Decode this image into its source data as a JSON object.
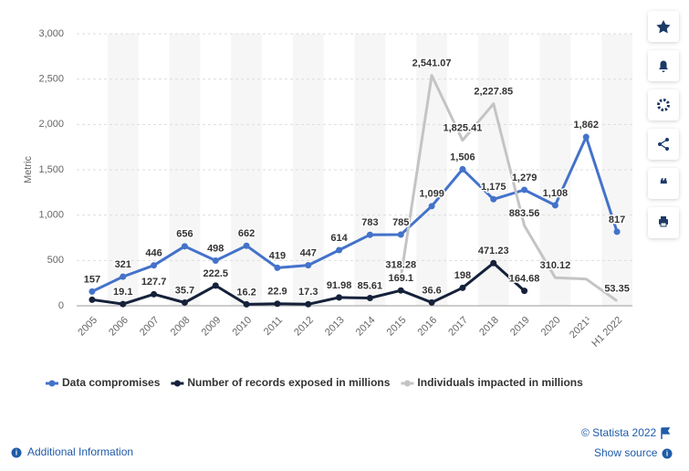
{
  "chart_data": {
    "type": "line",
    "y_label": "Metric",
    "categories": [
      "2005",
      "2006",
      "2007",
      "2008",
      "2009",
      "2010",
      "2011",
      "2012",
      "2013",
      "2014",
      "2015",
      "2016",
      "2017",
      "2018",
      "2019",
      "2020",
      "2021¹",
      "H1 2022"
    ],
    "series": [
      {
        "name": "Data compromises",
        "color": "#4472ca",
        "markers": true,
        "values": [
          157,
          321,
          446,
          656,
          498,
          662,
          419,
          447,
          614,
          783,
          785,
          1099,
          1506,
          1175,
          1279,
          1108,
          1862,
          817
        ],
        "value_labels": [
          "157",
          "321",
          "446",
          "656",
          "498",
          "662",
          "419",
          "447",
          "614",
          "783",
          "785",
          "1,099",
          "1,506",
          "1,175",
          "1,279",
          "1,108",
          "1,862",
          "817"
        ]
      },
      {
        "name": "Number of records exposed in millions",
        "color": "#15213a",
        "markers": true,
        "values": [
          67,
          19.1,
          127.7,
          35.7,
          222.5,
          16.2,
          22.9,
          17.3,
          91.98,
          85.61,
          169.1,
          36.6,
          198,
          471.23,
          164.68,
          null,
          null,
          null
        ],
        "value_labels": [
          null,
          "19.1",
          "127.7",
          "35.7",
          "222.5",
          "16.2",
          "22.9",
          "17.3",
          "91.98",
          "85.61",
          "169.1",
          "36.6",
          "198",
          "471.23",
          "164.68",
          null,
          null,
          null
        ]
      },
      {
        "name": "Individuals impacted in millions",
        "color": "#c4c4c4",
        "markers": false,
        "values": [
          null,
          null,
          null,
          null,
          null,
          null,
          null,
          null,
          null,
          null,
          318.28,
          2541.07,
          1825.41,
          2227.85,
          883.56,
          310.12,
          295,
          53.35
        ],
        "value_labels": [
          null,
          null,
          null,
          null,
          null,
          null,
          null,
          null,
          null,
          null,
          "318.28",
          "2,541.07",
          "1,825.41",
          "2,227.85",
          "883.56",
          "310.12",
          null,
          "53.35"
        ]
      }
    ],
    "ylim": [
      0,
      3000
    ],
    "yticks": [
      0,
      500,
      {
        "value": 1000,
        "label": "1,000"
      },
      {
        "value": 1500,
        "label": "1,500"
      },
      {
        "value": 2000,
        "label": "2,000"
      },
      {
        "value": 2500,
        "label": "2,500"
      },
      {
        "value": 3000,
        "label": "3,000"
      }
    ],
    "grid": true,
    "legend": "bottom"
  },
  "footer": {
    "copyright": "© Statista 2022",
    "source": "Show source",
    "info": "Additional Information"
  }
}
